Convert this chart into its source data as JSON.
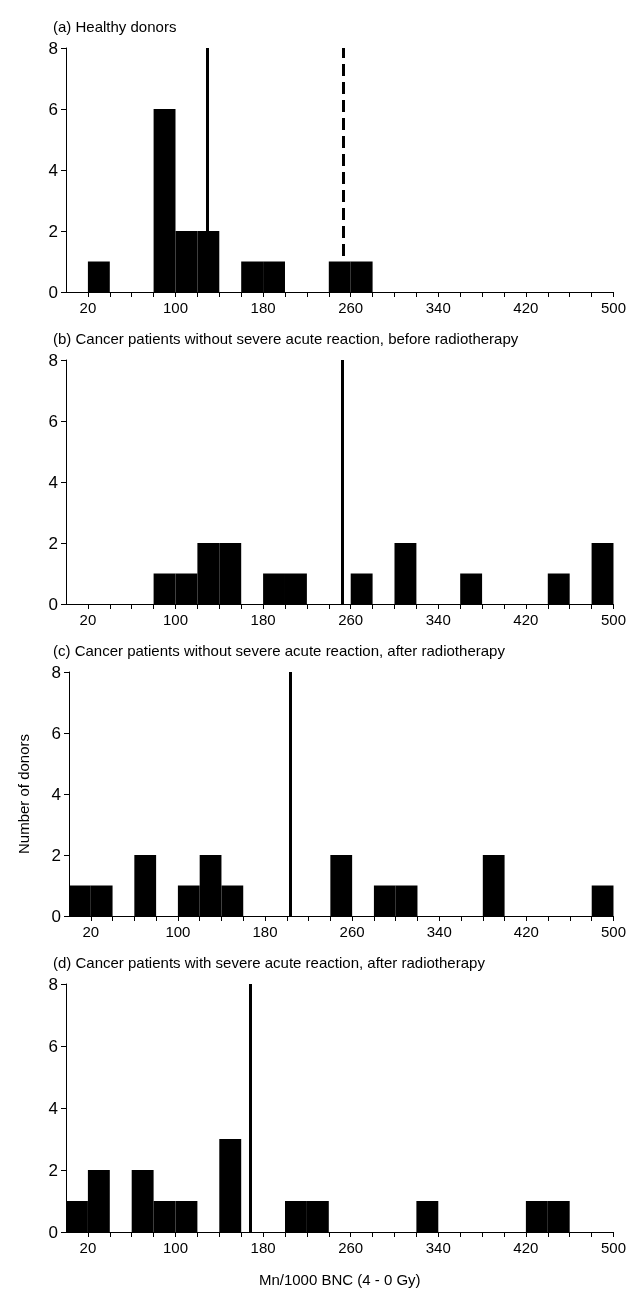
{
  "chart_data": [
    {
      "type": "histogram",
      "title": "(a) Healthy donors",
      "bins": [
        0,
        20,
        40,
        60,
        80,
        100,
        120,
        140,
        160,
        180,
        200,
        220,
        240,
        260,
        280,
        300,
        320,
        340,
        360,
        380,
        400,
        420,
        440,
        460,
        480,
        500
      ],
      "values": [
        0,
        1,
        0,
        0,
        6,
        2,
        2,
        0,
        1,
        1,
        0,
        0,
        1,
        1,
        0,
        0,
        0,
        0,
        0,
        0,
        0,
        0,
        0,
        0,
        0
      ],
      "color": "#000000",
      "xlim": [
        0,
        500
      ],
      "xticks": [
        20,
        {
          "value": 40,
          "label": null
        },
        {
          "value": 60,
          "label": null
        },
        {
          "value": 80,
          "label": null
        },
        100,
        {
          "value": 120,
          "label": null
        },
        {
          "value": 140,
          "label": null
        },
        {
          "value": 160,
          "label": null
        },
        180,
        {
          "value": 200,
          "label": null
        },
        {
          "value": 220,
          "label": null
        },
        {
          "value": 240,
          "label": null
        },
        260,
        {
          "value": 280,
          "label": null
        },
        {
          "value": 300,
          "label": null
        },
        {
          "value": 320,
          "label": null
        },
        340,
        {
          "value": 360,
          "label": null
        },
        {
          "value": 380,
          "label": null
        },
        {
          "value": 400,
          "label": null
        },
        420,
        {
          "value": 440,
          "label": null
        },
        {
          "value": 460,
          "label": null
        },
        {
          "value": 480,
          "label": null
        },
        500
      ],
      "ylim": [
        0,
        8
      ],
      "yticks": [
        0,
        2,
        4,
        6,
        8
      ],
      "grid": false,
      "ref_lines": [
        {
          "axis": "x",
          "value": 129,
          "color": "#000000",
          "line_style": "solid"
        },
        {
          "axis": "x",
          "value": 253,
          "color": "#000000",
          "line_style": "dashed"
        }
      ]
    },
    {
      "type": "histogram",
      "title": "(b) Cancer patients without severe acute reaction, before radiotherapy",
      "bins": [
        0,
        20,
        40,
        60,
        80,
        100,
        120,
        140,
        160,
        180,
        200,
        220,
        240,
        260,
        280,
        300,
        320,
        340,
        360,
        380,
        400,
        420,
        440,
        460,
        480,
        500
      ],
      "values": [
        0,
        0,
        0,
        0,
        1,
        1,
        2,
        2,
        0,
        1,
        1,
        0,
        0,
        1,
        0,
        2,
        0,
        0,
        1,
        0,
        0,
        0,
        1,
        0,
        2
      ],
      "color": "#000000",
      "xlim": [
        0,
        500
      ],
      "xticks": [
        20,
        {
          "value": 40,
          "label": null
        },
        {
          "value": 60,
          "label": null
        },
        {
          "value": 80,
          "label": null
        },
        100,
        {
          "value": 120,
          "label": null
        },
        {
          "value": 140,
          "label": null
        },
        {
          "value": 160,
          "label": null
        },
        180,
        {
          "value": 200,
          "label": null
        },
        {
          "value": 220,
          "label": null
        },
        {
          "value": 240,
          "label": null
        },
        260,
        {
          "value": 280,
          "label": null
        },
        {
          "value": 300,
          "label": null
        },
        {
          "value": 320,
          "label": null
        },
        340,
        {
          "value": 360,
          "label": null
        },
        {
          "value": 380,
          "label": null
        },
        {
          "value": 400,
          "label": null
        },
        420,
        {
          "value": 440,
          "label": null
        },
        {
          "value": 460,
          "label": null
        },
        {
          "value": 480,
          "label": null
        },
        500
      ],
      "ylim": [
        0,
        8
      ],
      "yticks": [
        0,
        2,
        4,
        6,
        8
      ],
      "grid": false,
      "ref_lines": [
        {
          "axis": "x",
          "value": 252,
          "color": "#000000",
          "line_style": "solid"
        }
      ]
    },
    {
      "type": "histogram",
      "title": "(c) Cancer patients without severe acute reaction, after radiotherapy",
      "ylabel": "Number of donors",
      "bins": [
        0,
        20,
        40,
        60,
        80,
        100,
        120,
        140,
        160,
        180,
        200,
        220,
        240,
        260,
        280,
        300,
        320,
        340,
        360,
        380,
        400,
        420,
        440,
        460,
        480,
        500
      ],
      "values": [
        1,
        1,
        0,
        2,
        0,
        1,
        2,
        1,
        0,
        0,
        0,
        0,
        2,
        0,
        1,
        1,
        0,
        0,
        0,
        2,
        0,
        0,
        0,
        0,
        1
      ],
      "color": "#000000",
      "xlim": [
        0,
        500
      ],
      "xticks": [
        20,
        {
          "value": 40,
          "label": null
        },
        {
          "value": 60,
          "label": null
        },
        {
          "value": 80,
          "label": null
        },
        100,
        {
          "value": 120,
          "label": null
        },
        {
          "value": 140,
          "label": null
        },
        {
          "value": 160,
          "label": null
        },
        180,
        {
          "value": 200,
          "label": null
        },
        {
          "value": 220,
          "label": null
        },
        {
          "value": 240,
          "label": null
        },
        260,
        {
          "value": 280,
          "label": null
        },
        {
          "value": 300,
          "label": null
        },
        {
          "value": 320,
          "label": null
        },
        340,
        {
          "value": 360,
          "label": null
        },
        {
          "value": 380,
          "label": null
        },
        {
          "value": 400,
          "label": null
        },
        420,
        {
          "value": 440,
          "label": null
        },
        {
          "value": 460,
          "label": null
        },
        {
          "value": 480,
          "label": null
        },
        500
      ],
      "ylim": [
        0,
        8
      ],
      "yticks": [
        0,
        2,
        4,
        6,
        8
      ],
      "grid": false,
      "ref_lines": [
        {
          "axis": "x",
          "value": 203,
          "color": "#000000",
          "line_style": "solid"
        }
      ]
    },
    {
      "type": "histogram",
      "title": "(d) Cancer patients with severe acute reaction, after radiotherapy",
      "xlabel": "Mn/1000 BNC (4 - 0 Gy)",
      "bins": [
        0,
        20,
        40,
        60,
        80,
        100,
        120,
        140,
        160,
        180,
        200,
        220,
        240,
        260,
        280,
        300,
        320,
        340,
        360,
        380,
        400,
        420,
        440,
        460,
        480,
        500
      ],
      "values": [
        1,
        2,
        0,
        2,
        1,
        1,
        0,
        3,
        0,
        0,
        1,
        1,
        0,
        0,
        0,
        0,
        1,
        0,
        0,
        0,
        0,
        1,
        1,
        0,
        0
      ],
      "color": "#000000",
      "xlim": [
        0,
        500
      ],
      "xticks": [
        20,
        {
          "value": 40,
          "label": null
        },
        {
          "value": 60,
          "label": null
        },
        {
          "value": 80,
          "label": null
        },
        100,
        {
          "value": 120,
          "label": null
        },
        {
          "value": 140,
          "label": null
        },
        {
          "value": 160,
          "label": null
        },
        180,
        {
          "value": 200,
          "label": null
        },
        {
          "value": 220,
          "label": null
        },
        {
          "value": 240,
          "label": null
        },
        260,
        {
          "value": 280,
          "label": null
        },
        {
          "value": 300,
          "label": null
        },
        {
          "value": 320,
          "label": null
        },
        340,
        {
          "value": 360,
          "label": null
        },
        {
          "value": 380,
          "label": null
        },
        {
          "value": 400,
          "label": null
        },
        420,
        {
          "value": 440,
          "label": null
        },
        {
          "value": 460,
          "label": null
        },
        {
          "value": 480,
          "label": null
        },
        500
      ],
      "ylim": [
        0,
        8
      ],
      "yticks": [
        0,
        2,
        4,
        6,
        8
      ],
      "grid": false,
      "ref_lines": [
        {
          "axis": "x",
          "value": 168,
          "color": "#000000",
          "line_style": "solid"
        }
      ]
    }
  ]
}
